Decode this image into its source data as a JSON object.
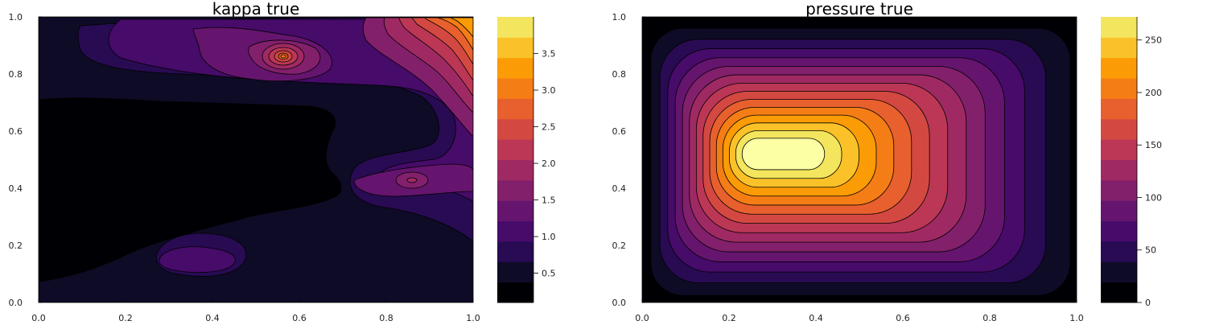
{
  "palette": [
    "#000004",
    "#0e0b26",
    "#280b53",
    "#470b6a",
    "#65156e",
    "#82206c",
    "#9f2a63",
    "#bb3755",
    "#d44842",
    "#e8602d",
    "#f57d15",
    "#fb9b06",
    "#fac228",
    "#f3e55d",
    "#fcffa4"
  ],
  "chart_data": [
    {
      "type": "contour",
      "title": "kappa true",
      "xlabel": "",
      "ylabel": "",
      "xlim": [
        0,
        1
      ],
      "ylim": [
        0,
        1
      ],
      "x_ticks": [
        "0.0",
        "0.2",
        "0.4",
        "0.6",
        "0.8",
        "1.0"
      ],
      "y_ticks": [
        "0.0",
        "0.2",
        "0.4",
        "0.6",
        "0.8",
        "1.0"
      ],
      "colorbar": {
        "range": [
          0.1,
          4.0
        ],
        "levels": 14,
        "ticks": [
          {
            "value": 0.5,
            "label": "0.5"
          },
          {
            "value": 1.0,
            "label": "1.0"
          },
          {
            "value": 1.5,
            "label": "1.5"
          },
          {
            "value": 2.0,
            "label": "2.0"
          },
          {
            "value": 2.5,
            "label": "2.5"
          },
          {
            "value": 3.0,
            "label": "3.0"
          },
          {
            "value": 3.5,
            "label": "3.5"
          }
        ]
      },
      "grid": false,
      "legend": "colorbar-right"
    },
    {
      "type": "contour",
      "title": "pressure true",
      "xlabel": "",
      "ylabel": "",
      "xlim": [
        0,
        1
      ],
      "ylim": [
        0,
        1
      ],
      "x_ticks": [
        "0.0",
        "0.2",
        "0.4",
        "0.6",
        "0.8",
        "1.0"
      ],
      "y_ticks": [
        "0.0",
        "0.2",
        "0.4",
        "0.6",
        "0.8",
        "1.0"
      ],
      "colorbar": {
        "range": [
          0,
          272
        ],
        "levels": 14,
        "ticks": [
          {
            "value": 0,
            "label": "0"
          },
          {
            "value": 50,
            "label": "50"
          },
          {
            "value": 100,
            "label": "100"
          },
          {
            "value": 150,
            "label": "150"
          },
          {
            "value": 200,
            "label": "200"
          },
          {
            "value": 250,
            "label": "250"
          }
        ]
      },
      "grid": false,
      "legend": "colorbar-right"
    }
  ]
}
